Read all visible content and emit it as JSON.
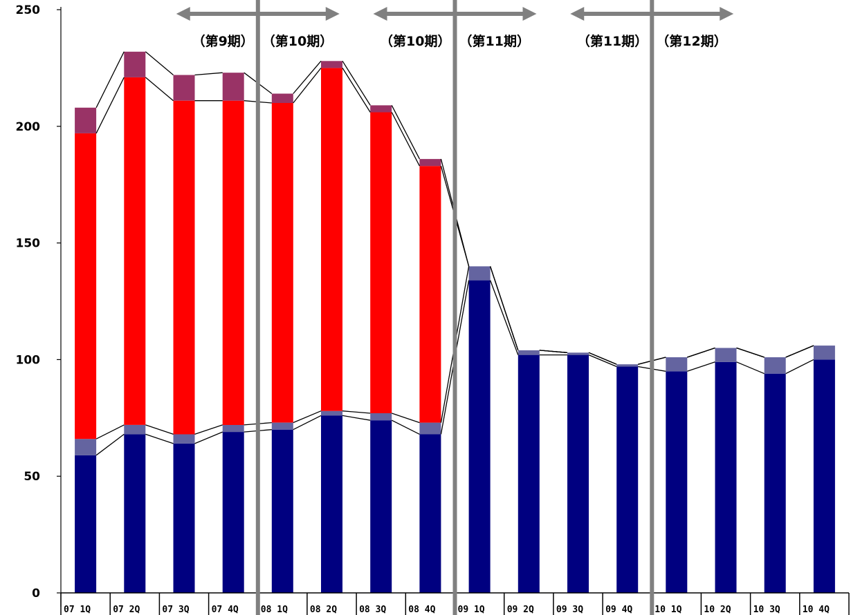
{
  "chart_data": {
    "type": "bar",
    "stacked": true,
    "ylim": [
      0,
      250
    ],
    "yticks": [
      "0",
      "50",
      "100",
      "150",
      "200",
      "250"
    ],
    "grid": false,
    "categories": [
      "07 1Q",
      "07 2Q",
      "07 3Q",
      "07 4Q",
      "08 1Q",
      "08 2Q",
      "08 3Q",
      "08 4Q",
      "09 1Q",
      "09 2Q",
      "09 3Q",
      "09 4Q",
      "10 1Q",
      "10 2Q",
      "10 3Q",
      "10 4Q"
    ],
    "series": [
      {
        "color": "#000080",
        "values": [
          59,
          68,
          64,
          69,
          70,
          76,
          74,
          68,
          134,
          102,
          102,
          97,
          95,
          99,
          94,
          100
        ]
      },
      {
        "color": "#6464A0",
        "values": [
          7,
          4,
          4,
          3,
          3,
          2,
          3,
          5,
          6,
          2,
          1,
          1,
          6,
          6,
          7,
          6
        ]
      },
      {
        "color": "#FF0000",
        "values": [
          131,
          149,
          143,
          139,
          137,
          147,
          129,
          110,
          0,
          0,
          0,
          0,
          0,
          0,
          0,
          0
        ]
      },
      {
        "color": "#993366",
        "values": [
          11,
          11,
          11,
          12,
          4,
          3,
          3,
          3,
          0,
          0,
          0,
          0,
          0,
          0,
          0,
          0
        ]
      }
    ],
    "period_dividers": [
      {
        "after_category": "07 4Q",
        "left_label": "（第9期）",
        "right_label": "（第10期）"
      },
      {
        "after_category": "08 4Q",
        "left_label": "（第10期）",
        "right_label": "（第11期）"
      },
      {
        "after_category": "09 4Q",
        "left_label": "（第11期）",
        "right_label": "（第12期）"
      }
    ],
    "divider_color": "#808080"
  }
}
